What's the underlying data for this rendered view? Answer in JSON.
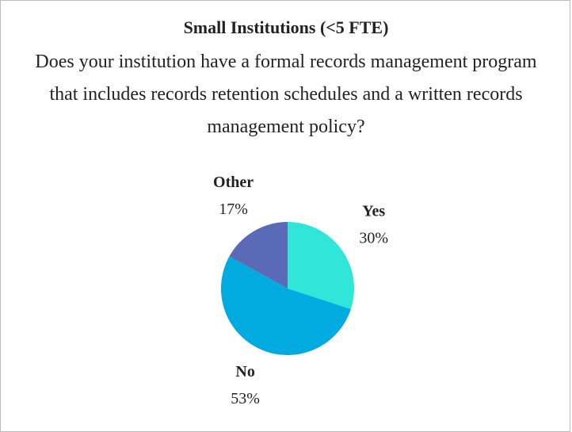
{
  "chart_data": {
    "type": "pie",
    "title": "Small Institutions (<5 FTE)",
    "subtitle": "Does your institution have a formal records management program that includes records retention schedules and a written records management policy?",
    "categories": [
      "Yes",
      "No",
      "Other"
    ],
    "values": [
      30,
      53,
      17
    ],
    "value_labels": [
      "30%",
      "53%",
      "17%"
    ],
    "colors": [
      "#2fe6d8",
      "#00acdf",
      "#5a6ab6"
    ]
  }
}
